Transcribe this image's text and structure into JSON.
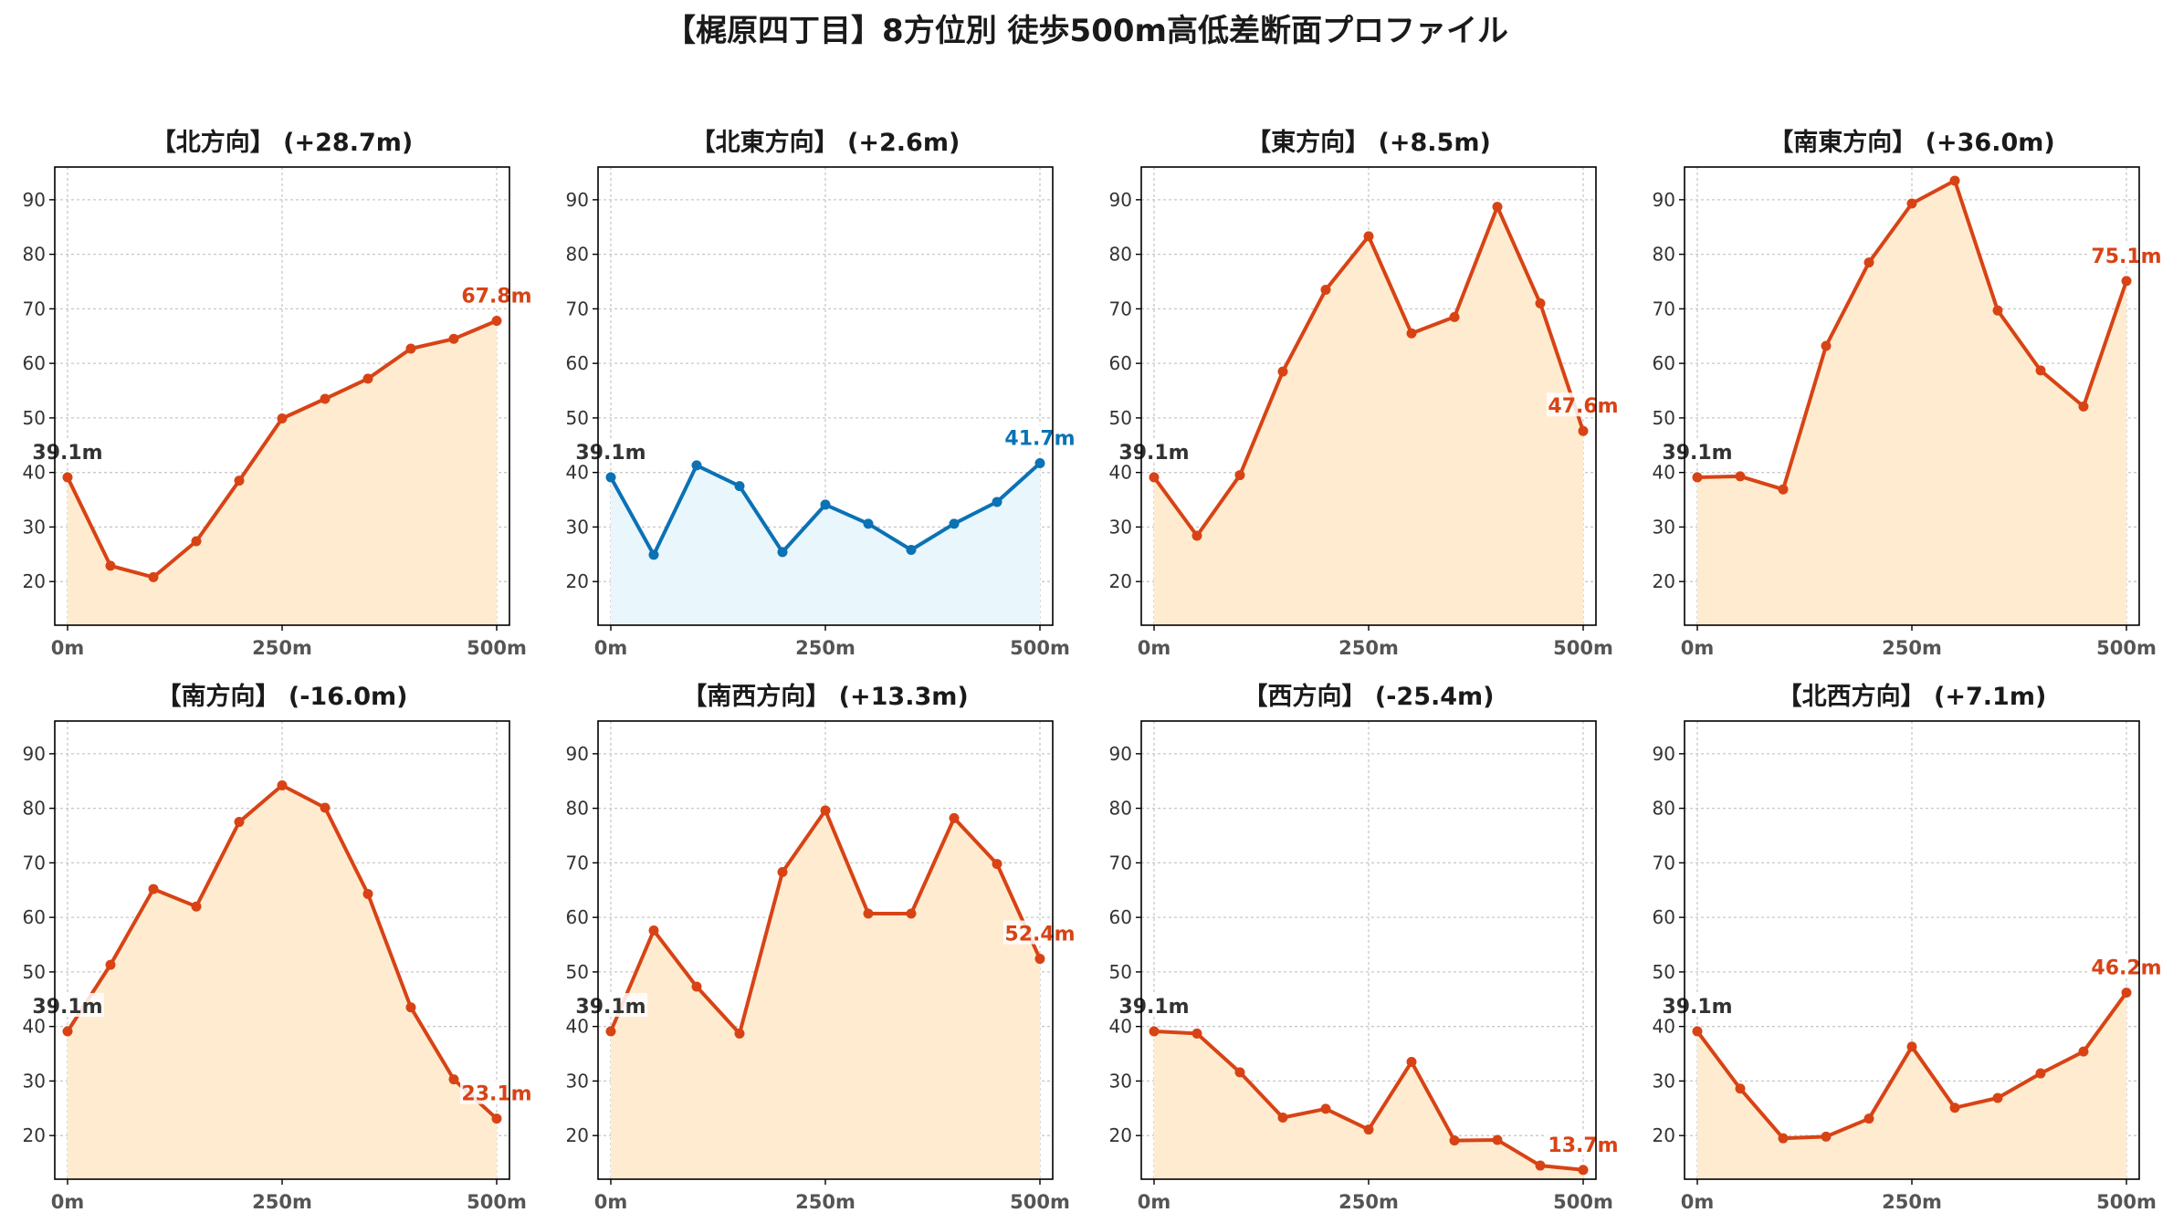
{
  "suptitle": "【梶原四丁目】8方位別 徒歩500m高低差断面プロファイル",
  "colors": {
    "up": "#d84315",
    "up_fill": "#ffecd0",
    "flat": "#0a72b5",
    "flat_fill": "#e9f6fc"
  },
  "chart_data": [
    {
      "type": "area",
      "title": "【北方向】 (+28.7m)",
      "x": [
        0,
        50,
        100,
        150,
        200,
        250,
        300,
        350,
        400,
        450,
        500
      ],
      "xticks": [
        "0m",
        "250m",
        "500m"
      ],
      "yticks": [
        20,
        30,
        40,
        50,
        60,
        70,
        80,
        90
      ],
      "ylim": [
        12,
        96
      ],
      "grid": true,
      "start_label": "39.1m",
      "end_label": "67.8m",
      "style": "up",
      "values": [
        39.1,
        22.9,
        20.8,
        27.4,
        38.5,
        49.9,
        53.5,
        57.2,
        62.7,
        64.5,
        67.8
      ]
    },
    {
      "type": "area",
      "title": "【北東方向】 (+2.6m)",
      "x": [
        0,
        50,
        100,
        150,
        200,
        250,
        300,
        350,
        400,
        450,
        500
      ],
      "xticks": [
        "0m",
        "250m",
        "500m"
      ],
      "yticks": [
        20,
        30,
        40,
        50,
        60,
        70,
        80,
        90
      ],
      "ylim": [
        12,
        96
      ],
      "grid": true,
      "start_label": "39.1m",
      "end_label": "41.7m",
      "style": "flat",
      "values": [
        39.1,
        24.9,
        41.3,
        37.5,
        25.4,
        34.1,
        30.6,
        25.8,
        30.6,
        34.6,
        41.7
      ]
    },
    {
      "type": "area",
      "title": "【東方向】 (+8.5m)",
      "x": [
        0,
        50,
        100,
        150,
        200,
        250,
        300,
        350,
        400,
        450,
        500
      ],
      "xticks": [
        "0m",
        "250m",
        "500m"
      ],
      "yticks": [
        20,
        30,
        40,
        50,
        60,
        70,
        80,
        90
      ],
      "ylim": [
        12,
        96
      ],
      "grid": true,
      "start_label": "39.1m",
      "end_label": "47.6m",
      "style": "up",
      "values": [
        39.1,
        28.4,
        39.5,
        58.5,
        73.5,
        83.3,
        65.5,
        68.5,
        88.7,
        71.0,
        47.6
      ]
    },
    {
      "type": "area",
      "title": "【南東方向】 (+36.0m)",
      "x": [
        0,
        50,
        100,
        150,
        200,
        250,
        300,
        350,
        400,
        450,
        500
      ],
      "xticks": [
        "0m",
        "250m",
        "500m"
      ],
      "yticks": [
        20,
        30,
        40,
        50,
        60,
        70,
        80,
        90
      ],
      "ylim": [
        12,
        96
      ],
      "grid": true,
      "start_label": "39.1m",
      "end_label": "75.1m",
      "style": "up",
      "values": [
        39.1,
        39.3,
        36.9,
        63.2,
        78.5,
        89.3,
        93.5,
        69.7,
        58.7,
        52.1,
        75.1
      ]
    },
    {
      "type": "area",
      "title": "【南方向】 (-16.0m)",
      "x": [
        0,
        50,
        100,
        150,
        200,
        250,
        300,
        350,
        400,
        450,
        500
      ],
      "xticks": [
        "0m",
        "250m",
        "500m"
      ],
      "yticks": [
        20,
        30,
        40,
        50,
        60,
        70,
        80,
        90
      ],
      "ylim": [
        12,
        96
      ],
      "grid": true,
      "start_label": "39.1m",
      "end_label": "23.1m",
      "style": "up",
      "values": [
        39.1,
        51.3,
        65.2,
        62.0,
        77.5,
        84.2,
        80.1,
        64.3,
        43.5,
        30.3,
        23.1
      ]
    },
    {
      "type": "area",
      "title": "【南西方向】 (+13.3m)",
      "x": [
        0,
        50,
        100,
        150,
        200,
        250,
        300,
        350,
        400,
        450,
        500
      ],
      "xticks": [
        "0m",
        "250m",
        "500m"
      ],
      "yticks": [
        20,
        30,
        40,
        50,
        60,
        70,
        80,
        90
      ],
      "ylim": [
        12,
        96
      ],
      "grid": true,
      "start_label": "39.1m",
      "end_label": "52.4m",
      "style": "up",
      "values": [
        39.1,
        57.6,
        47.3,
        38.7,
        68.3,
        79.6,
        60.7,
        60.7,
        78.2,
        69.8,
        52.4
      ]
    },
    {
      "type": "area",
      "title": "【西方向】 (-25.4m)",
      "x": [
        0,
        50,
        100,
        150,
        200,
        250,
        300,
        350,
        400,
        450,
        500
      ],
      "xticks": [
        "0m",
        "250m",
        "500m"
      ],
      "yticks": [
        20,
        30,
        40,
        50,
        60,
        70,
        80,
        90
      ],
      "ylim": [
        12,
        96
      ],
      "grid": true,
      "start_label": "39.1m",
      "end_label": "13.7m",
      "style": "up",
      "values": [
        39.1,
        38.7,
        31.6,
        23.3,
        24.9,
        21.1,
        33.5,
        19.1,
        19.2,
        14.5,
        13.7
      ]
    },
    {
      "type": "area",
      "title": "【北西方向】 (+7.1m)",
      "x": [
        0,
        50,
        100,
        150,
        200,
        250,
        300,
        350,
        400,
        450,
        500
      ],
      "xticks": [
        "0m",
        "250m",
        "500m"
      ],
      "yticks": [
        20,
        30,
        40,
        50,
        60,
        70,
        80,
        90
      ],
      "ylim": [
        12,
        96
      ],
      "grid": true,
      "start_label": "39.1m",
      "end_label": "46.2m",
      "style": "up",
      "values": [
        39.1,
        28.6,
        19.5,
        19.8,
        23.1,
        36.3,
        25.1,
        26.9,
        31.4,
        35.4,
        46.2
      ]
    }
  ]
}
